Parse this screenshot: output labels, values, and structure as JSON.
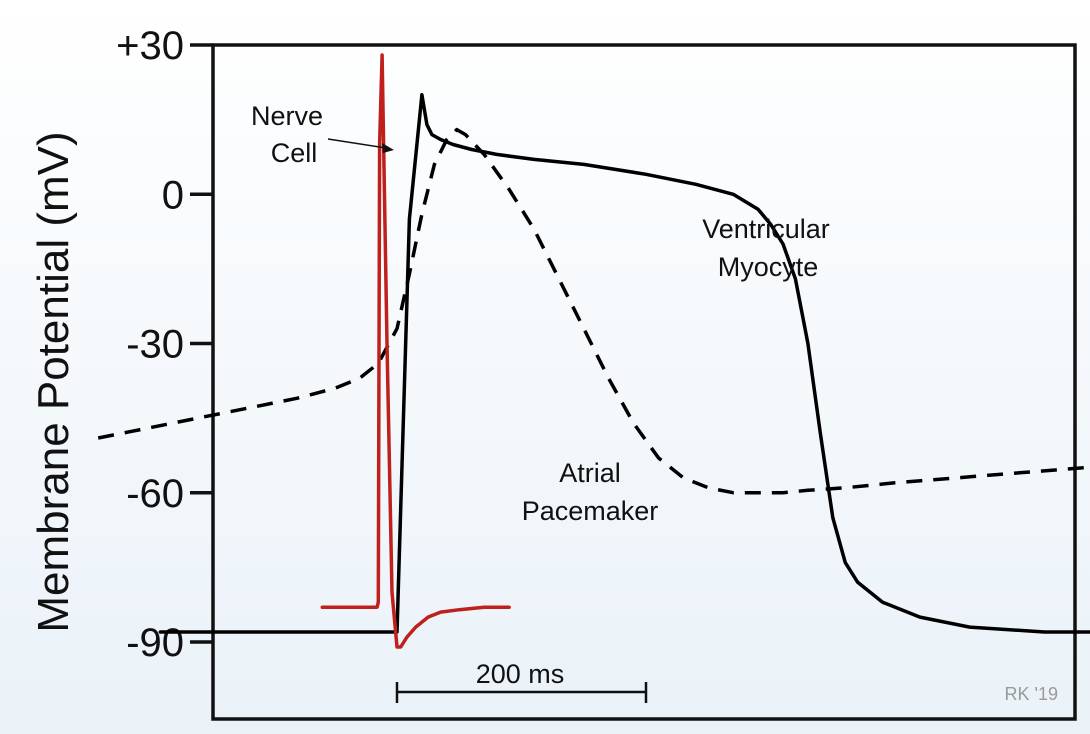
{
  "chart_data": {
    "type": "line",
    "title": "",
    "xlabel": "",
    "ylabel": "Membrane Potential (mV)",
    "x_unit": "ms",
    "ylim": [
      -100,
      30
    ],
    "xlim": [
      -330,
      750
    ],
    "yticks": [
      30,
      0,
      -30,
      -60,
      -90
    ],
    "ytick_labels": [
      "+30",
      "0",
      "-30",
      "-60",
      "-90"
    ],
    "grid": false,
    "legend": "none",
    "scale_bar": {
      "label": "200 ms",
      "length": 200
    },
    "credit": "RK '19",
    "colors": {
      "nerve": "#c0201c",
      "ventricular": "#000000",
      "atrial": "#000000",
      "axis": "#111111"
    },
    "series": [
      {
        "name": "Ventricular Myocyte",
        "style": "solid",
        "label_lines": [
          "Ventricular",
          "Myocyte"
        ],
        "x": [
          -190,
          -10,
          0,
          10,
          20,
          24,
          28,
          35,
          45,
          60,
          80,
          110,
          150,
          200,
          240,
          270,
          290,
          300,
          310,
          320,
          330,
          340,
          350,
          360,
          370,
          390,
          420,
          460,
          520,
          580,
          640,
          690
        ],
        "y": [
          -88,
          -88,
          -88,
          -5,
          20,
          14,
          12,
          11,
          10,
          9,
          8,
          7,
          6,
          4,
          2,
          0,
          -3,
          -6,
          -10,
          -17,
          -30,
          -48,
          -65,
          -74,
          -78,
          -82,
          -85,
          -87,
          -88,
          -88,
          -88,
          -88
        ]
      },
      {
        "name": "Atrial Pacemaker",
        "style": "dashed",
        "label_lines": [
          "Atrial",
          "Pacemaker"
        ],
        "x": [
          -240,
          -200,
          -160,
          -120,
          -80,
          -50,
          -30,
          -15,
          0,
          10,
          20,
          30,
          40,
          48,
          55,
          70,
          90,
          110,
          130,
          150,
          170,
          190,
          210,
          230,
          250,
          270,
          290,
          310,
          330,
          360,
          400,
          450,
          500,
          550,
          600,
          650,
          690
        ],
        "y": [
          -49,
          -47,
          -45,
          -43,
          -41,
          -39,
          -37,
          -34,
          -27,
          -16,
          -4,
          6,
          11,
          13,
          12,
          8,
          1,
          -7,
          -17,
          -27,
          -37,
          -46,
          -53,
          -57,
          -59,
          -60,
          -60,
          -60,
          -59.5,
          -59,
          -58,
          -57,
          -56,
          -55,
          -53.5,
          -52,
          -49
        ]
      },
      {
        "name": "Nerve Cell",
        "style": "solid",
        "label_lines": [
          "Nerve",
          "Cell"
        ],
        "x": [
          -60,
          -16,
          -15,
          -14,
          -12,
          -8,
          -4,
          0,
          3,
          8,
          15,
          25,
          35,
          50,
          70,
          90
        ],
        "y": [
          -83,
          -83,
          -82,
          10,
          28,
          -30,
          -80,
          -91,
          -91,
          -89,
          -87,
          -85,
          -84,
          -83.5,
          -83,
          -83
        ]
      }
    ]
  }
}
